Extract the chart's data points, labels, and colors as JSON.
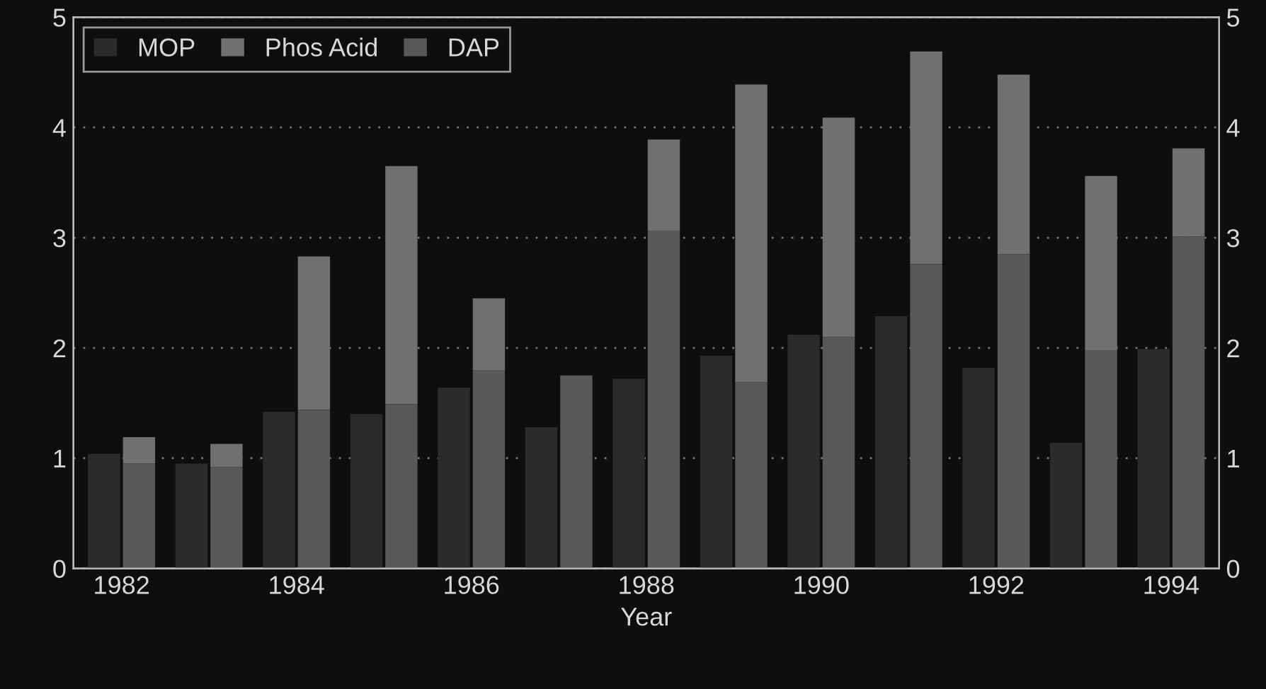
{
  "chart_data": {
    "type": "bar",
    "xlabel": "Year",
    "categories": [
      "1982",
      null,
      "1984",
      null,
      "1986",
      null,
      "1988",
      null,
      "1990",
      null,
      "1992",
      null,
      "1994"
    ],
    "series": [
      {
        "name": "MOP",
        "color": "#2b2b2b",
        "values": [
          1.04,
          0.95,
          1.42,
          1.4,
          1.64,
          1.28,
          1.72,
          1.93,
          2.12,
          2.29,
          1.82,
          1.14,
          1.99
        ]
      },
      {
        "name": "Phos Acid",
        "color": "#707070",
        "base": [
          0.95,
          0.92,
          1.44,
          1.49,
          1.8,
          null,
          3.06,
          1.69,
          2.1,
          2.76,
          2.85,
          1.98,
          3.01
        ],
        "values": [
          0.24,
          0.21,
          1.39,
          2.16,
          0.65,
          null,
          0.83,
          2.7,
          1.99,
          1.93,
          1.63,
          1.58,
          0.8
        ]
      },
      {
        "name": "DAP",
        "color": "#585858",
        "values": [
          0.95,
          0.92,
          1.44,
          1.49,
          1.8,
          1.75,
          3.06,
          1.69,
          2.1,
          2.76,
          2.85,
          1.98,
          3.01
        ]
      }
    ],
    "ylim": [
      0,
      5
    ],
    "yticks": [
      0,
      1,
      2,
      3,
      4,
      5
    ],
    "y2lim": [
      0,
      5
    ],
    "y2ticks": [
      0,
      1,
      2,
      3,
      4,
      5
    ],
    "grid": "y",
    "legend": "top left"
  }
}
